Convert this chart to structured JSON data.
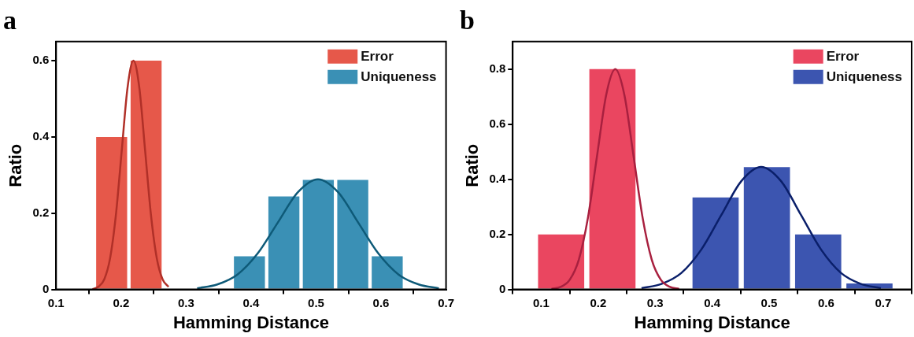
{
  "chart_data": [
    {
      "type": "histogram",
      "title": "a",
      "xlabel": "Hamming Distance",
      "ylabel": "Ratio",
      "xlim": [
        0.1,
        0.7
      ],
      "xticks": [
        0.1,
        0.2,
        0.3,
        0.4,
        0.5,
        0.6,
        0.7
      ],
      "ylim": [
        0,
        0.65
      ],
      "yticks": [
        0,
        0.2,
        0.4,
        0.6
      ],
      "grid": false,
      "legend": "top right",
      "series": [
        {
          "name": "Error",
          "color": "#e6584a",
          "bins": [
            0.159,
            0.212,
            0.265
          ],
          "values": [
            0.4,
            0.6
          ]
        },
        {
          "name": "Uniqueness",
          "color": "#3a90b5",
          "bins": [
            0.371,
            0.424,
            0.477,
            0.53,
            0.583,
            0.636
          ],
          "values": [
            0.087,
            0.244,
            0.287,
            0.287,
            0.087
          ]
        },
        {
          "type": "line",
          "color": "#b03028",
          "x": [
            0.156,
            0.165,
            0.174,
            0.183,
            0.192,
            0.201,
            0.21,
            0.219,
            0.228,
            0.237,
            0.246,
            0.255,
            0.264,
            0.273
          ],
          "values": [
            0.001,
            0.007,
            0.026,
            0.081,
            0.195,
            0.364,
            0.53,
            0.6,
            0.53,
            0.364,
            0.195,
            0.081,
            0.026,
            0.007
          ]
        },
        {
          "type": "line",
          "color": "#0e5a78",
          "x": [
            0.317,
            0.348,
            0.379,
            0.41,
            0.441,
            0.472,
            0.503,
            0.534,
            0.565,
            0.596,
            0.627,
            0.658,
            0.689
          ],
          "values": [
            0.003,
            0.013,
            0.039,
            0.094,
            0.175,
            0.255,
            0.289,
            0.255,
            0.175,
            0.094,
            0.039,
            0.013,
            0.003
          ]
        }
      ]
    },
    {
      "type": "histogram",
      "title": "b",
      "xlabel": "Hamming Distance",
      "ylabel": "Ratio",
      "xlim": [
        0.05,
        0.75
      ],
      "xticks": [
        0.1,
        0.2,
        0.3,
        0.4,
        0.5,
        0.6,
        0.7
      ],
      "ylim": [
        0,
        0.9
      ],
      "yticks": [
        0,
        0.2,
        0.4,
        0.6,
        0.8
      ],
      "grid": false,
      "legend": "top right",
      "series": [
        {
          "name": "Error",
          "color": "#ea4660",
          "bins": [
            0.09,
            0.18,
            0.27
          ],
          "values": [
            0.2,
            0.8
          ]
        },
        {
          "name": "Uniqueness",
          "color": "#3c55b0",
          "bins": [
            0.361,
            0.451,
            0.541,
            0.631,
            0.721
          ],
          "values": [
            0.334,
            0.444,
            0.2,
            0.022
          ]
        },
        {
          "type": "line",
          "color": "#a8203f",
          "x": [
            0.118,
            0.134,
            0.15,
            0.166,
            0.182,
            0.198,
            0.214,
            0.23,
            0.246,
            0.262,
            0.278,
            0.294,
            0.31,
            0.326,
            0.342
          ],
          "values": [
            0.002,
            0.009,
            0.035,
            0.108,
            0.26,
            0.485,
            0.706,
            0.8,
            0.706,
            0.485,
            0.26,
            0.108,
            0.035,
            0.009,
            0.002
          ]
        },
        {
          "type": "line",
          "color": "#0a1f6a",
          "x": [
            0.276,
            0.311,
            0.346,
            0.381,
            0.416,
            0.451,
            0.486,
            0.521,
            0.556,
            0.591,
            0.626,
            0.661,
            0.696
          ],
          "values": [
            0.005,
            0.02,
            0.06,
            0.145,
            0.27,
            0.393,
            0.445,
            0.393,
            0.27,
            0.145,
            0.06,
            0.02,
            0.005
          ]
        }
      ]
    }
  ]
}
